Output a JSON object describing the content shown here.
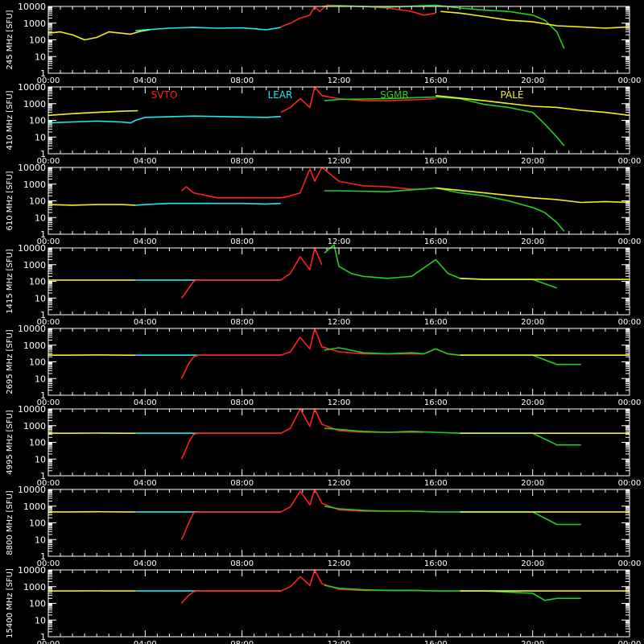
{
  "figure": {
    "background": "#000000",
    "frame_color": "#ffffff",
    "y_ticks": [
      "10000",
      "1000",
      "100",
      "10",
      "1"
    ],
    "x_ticks": [
      "00:00",
      "04:00",
      "08:00",
      "12:00",
      "16:00",
      "20:00",
      "00:00"
    ],
    "station_labels": [
      {
        "name": "SVTO",
        "color": "#ff2020"
      },
      {
        "name": "LEAR",
        "color": "#22e5f0"
      },
      {
        "name": "SGMR",
        "color": "#22d022"
      },
      {
        "name": "PALE",
        "color": "#f0f020"
      }
    ],
    "colors": {
      "SVTO": "#ff2020",
      "LEAR": "#22e5f0",
      "SGMR": "#22d022",
      "PALE": "#f0f020"
    }
  },
  "chart_data": [
    {
      "type": "line",
      "ylabel": "245 MHz [SFU]",
      "xlim": [
        0,
        24
      ],
      "ylim": [
        1,
        10000
      ],
      "yscale": "log",
      "series": [
        {
          "name": "PALE",
          "x": [
            0,
            0.5,
            1,
            1.5,
            2,
            2.5,
            3,
            3.4,
            3.8,
            4.2
          ],
          "y": [
            250,
            300,
            200,
            100,
            140,
            300,
            250,
            220,
            320,
            400
          ]
        },
        {
          "name": "LEAR",
          "x": [
            3.6,
            4,
            5,
            6,
            7,
            8,
            8.6,
            9,
            9.6
          ],
          "y": [
            350,
            400,
            500,
            550,
            500,
            520,
            450,
            400,
            550
          ]
        },
        {
          "name": "SVTO",
          "x": [
            9.6,
            10,
            10.4,
            10.8,
            11,
            11.2,
            11.5,
            13,
            14,
            15,
            15.5,
            16
          ],
          "y": [
            600,
            1000,
            2000,
            3000,
            10000,
            5000,
            12000,
            10000,
            8000,
            5000,
            3000,
            4000
          ]
        },
        {
          "name": "SGMR",
          "x": [
            11.3,
            12,
            14,
            16,
            17,
            18,
            19,
            20,
            20.5,
            21,
            21.3
          ],
          "y": [
            10000,
            11000,
            9000,
            12000,
            8000,
            6000,
            5000,
            3000,
            1500,
            300,
            30
          ]
        },
        {
          "name": "PALE",
          "x": [
            16.2,
            17,
            18,
            19,
            20,
            21,
            22,
            23,
            24
          ],
          "y": [
            5000,
            4000,
            2500,
            1500,
            1200,
            700,
            600,
            500,
            600
          ]
        }
      ]
    },
    {
      "type": "line",
      "ylabel": "410 MHz [SFU]",
      "xlim": [
        0,
        24
      ],
      "ylim": [
        1,
        10000
      ],
      "yscale": "log",
      "series": [
        {
          "name": "LEAR",
          "x": [
            0,
            1,
            2,
            3,
            3.4,
            3.6,
            4,
            6,
            8,
            9,
            9.6
          ],
          "y": [
            70,
            80,
            90,
            80,
            70,
            100,
            150,
            180,
            160,
            150,
            170
          ]
        },
        {
          "name": "PALE",
          "x": [
            0,
            1,
            2,
            3,
            3.7
          ],
          "y": [
            200,
            250,
            300,
            350,
            380
          ]
        },
        {
          "name": "SVTO",
          "x": [
            9.6,
            10,
            10.4,
            10.8,
            11,
            11.3,
            12,
            13,
            14,
            15,
            15.5,
            16
          ],
          "y": [
            300,
            600,
            2000,
            600,
            10000,
            3000,
            2000,
            1500,
            1500,
            1700,
            1800,
            2000
          ]
        },
        {
          "name": "SGMR",
          "x": [
            11.4,
            12,
            14,
            16,
            17,
            18,
            19,
            20,
            20.5,
            21,
            21.3
          ],
          "y": [
            1500,
            1800,
            2000,
            2500,
            2000,
            900,
            600,
            300,
            60,
            10,
            3
          ]
        },
        {
          "name": "PALE",
          "x": [
            16,
            18,
            20,
            21,
            22,
            23,
            24
          ],
          "y": [
            3000,
            1500,
            700,
            600,
            400,
            300,
            200
          ]
        }
      ]
    },
    {
      "type": "line",
      "ylabel": "610 MHz [SFU]",
      "xlim": [
        0,
        24
      ],
      "ylim": [
        1,
        10000
      ],
      "yscale": "log",
      "series": [
        {
          "name": "PALE",
          "x": [
            0,
            1,
            2,
            3,
            3.6
          ],
          "y": [
            60,
            55,
            60,
            60,
            55
          ]
        },
        {
          "name": "LEAR",
          "x": [
            3.6,
            4,
            5,
            6,
            8,
            9,
            9.6
          ],
          "y": [
            55,
            60,
            70,
            70,
            70,
            65,
            70
          ]
        },
        {
          "name": "SVTO",
          "x": [
            5.5,
            5.7,
            6,
            7,
            8,
            9,
            9.6,
            10,
            10.4,
            10.8,
            11,
            11.3,
            12,
            13,
            14,
            15,
            15.5,
            16
          ],
          "y": [
            400,
            700,
            300,
            150,
            150,
            150,
            150,
            200,
            300,
            8000,
            1500,
            10000,
            1500,
            800,
            700,
            500,
            500,
            600
          ]
        },
        {
          "name": "SGMR",
          "x": [
            11.4,
            12,
            14,
            16,
            17,
            18,
            19,
            20,
            20.5,
            21,
            21.3
          ],
          "y": [
            400,
            400,
            350,
            600,
            300,
            200,
            100,
            40,
            20,
            5,
            1.5
          ]
        },
        {
          "name": "PALE",
          "x": [
            16,
            18,
            20,
            21,
            22,
            23,
            24
          ],
          "y": [
            600,
            300,
            150,
            120,
            80,
            90,
            80
          ]
        }
      ]
    },
    {
      "type": "line",
      "ylabel": "1415 MHz [SFU]",
      "xlim": [
        0,
        24
      ],
      "ylim": [
        1,
        10000
      ],
      "yscale": "log",
      "series": [
        {
          "name": "PALE",
          "x": [
            0,
            1,
            2,
            3,
            3.6
          ],
          "y": [
            120,
            120,
            120,
            120,
            120
          ]
        },
        {
          "name": "LEAR",
          "x": [
            3.6,
            4,
            5,
            6,
            8,
            9,
            9.6
          ],
          "y": [
            120,
            120,
            120,
            120,
            120,
            120,
            120
          ]
        },
        {
          "name": "SVTO",
          "x": [
            5.5,
            5.6,
            5.8,
            6,
            6.1,
            6.5,
            9.6,
            10,
            10.4,
            10.8,
            11,
            11.3
          ],
          "y": [
            10,
            15,
            40,
            100,
            120,
            120,
            120,
            300,
            3000,
            500,
            10000,
            1000
          ]
        },
        {
          "name": "SGMR",
          "x": [
            11.4,
            11.8,
            12,
            12.5,
            13,
            14,
            15,
            16,
            16.5,
            17,
            18,
            20,
            21
          ],
          "y": [
            5000,
            15000,
            800,
            300,
            200,
            150,
            200,
            2000,
            300,
            150,
            130,
            130,
            40
          ]
        },
        {
          "name": "PALE",
          "x": [
            17,
            18,
            20,
            22,
            23,
            24
          ],
          "y": [
            150,
            130,
            130,
            130,
            130,
            130
          ]
        }
      ]
    },
    {
      "type": "line",
      "ylabel": "2695 MHz [SFU]",
      "xlim": [
        0,
        24
      ],
      "ylim": [
        1,
        10000
      ],
      "yscale": "log",
      "series": [
        {
          "name": "PALE",
          "x": [
            0,
            1,
            2,
            3,
            3.6
          ],
          "y": [
            250,
            250,
            260,
            250,
            250
          ]
        },
        {
          "name": "LEAR",
          "x": [
            3.6,
            4,
            5,
            6,
            8,
            9,
            9.6
          ],
          "y": [
            250,
            250,
            250,
            250,
            250,
            250,
            250
          ]
        },
        {
          "name": "SVTO",
          "x": [
            5.5,
            5.6,
            5.8,
            6,
            6.2,
            9.6,
            10,
            10.4,
            10.8,
            11,
            11.3,
            12,
            13,
            14,
            15,
            15.5
          ],
          "y": [
            10,
            20,
            80,
            200,
            250,
            250,
            400,
            3000,
            600,
            10000,
            800,
            400,
            300,
            300,
            300,
            300
          ]
        },
        {
          "name": "SGMR",
          "x": [
            11.4,
            12,
            13,
            14,
            15,
            15.5,
            16,
            16.5,
            17,
            18,
            20,
            21,
            22
          ],
          "y": [
            500,
            700,
            350,
            300,
            350,
            300,
            600,
            300,
            250,
            250,
            250,
            70,
            70
          ]
        },
        {
          "name": "PALE",
          "x": [
            17,
            18,
            20,
            22,
            23,
            24
          ],
          "y": [
            250,
            250,
            250,
            250,
            250,
            250
          ]
        }
      ]
    },
    {
      "type": "line",
      "ylabel": "4995 MHz [SFU]",
      "xlim": [
        0,
        24
      ],
      "ylim": [
        1,
        10000
      ],
      "yscale": "log",
      "series": [
        {
          "name": "PALE",
          "x": [
            0,
            1,
            2,
            3,
            3.6
          ],
          "y": [
            350,
            350,
            360,
            350,
            350
          ]
        },
        {
          "name": "LEAR",
          "x": [
            3.6,
            4,
            5,
            6,
            8,
            9,
            9.6
          ],
          "y": [
            350,
            350,
            350,
            350,
            350,
            350,
            350
          ]
        },
        {
          "name": "SVTO",
          "x": [
            5.5,
            5.6,
            5.8,
            6,
            6.2,
            9.6,
            10,
            10.4,
            10.8,
            11,
            11.3,
            12,
            13,
            14,
            15,
            15.5
          ],
          "y": [
            10,
            20,
            100,
            300,
            350,
            350,
            700,
            10000,
            900,
            10000,
            1200,
            500,
            400,
            400,
            400,
            400
          ]
        },
        {
          "name": "SGMR",
          "x": [
            11.4,
            12,
            13,
            14,
            15,
            16,
            17,
            18,
            20,
            21,
            22
          ],
          "y": [
            700,
            600,
            450,
            400,
            450,
            400,
            350,
            350,
            350,
            70,
            70
          ]
        },
        {
          "name": "PALE",
          "x": [
            17,
            18,
            20,
            22,
            23,
            24
          ],
          "y": [
            350,
            350,
            350,
            350,
            350,
            350
          ]
        }
      ]
    },
    {
      "type": "line",
      "ylabel": "8800 MHz [SFU]",
      "xlim": [
        0,
        24
      ],
      "ylim": [
        1,
        10000
      ],
      "yscale": "log",
      "series": [
        {
          "name": "PALE",
          "x": [
            0,
            1,
            2,
            3,
            3.6
          ],
          "y": [
            450,
            450,
            460,
            450,
            450
          ]
        },
        {
          "name": "LEAR",
          "x": [
            3.6,
            4,
            5,
            6,
            8,
            9,
            9.6
          ],
          "y": [
            450,
            450,
            450,
            450,
            450,
            450,
            450
          ]
        },
        {
          "name": "SVTO",
          "x": [
            5.5,
            5.6,
            5.8,
            6,
            6.2,
            9.6,
            10,
            10.4,
            10.8,
            11,
            11.3,
            12,
            13,
            14,
            15,
            15.5
          ],
          "y": [
            10,
            20,
            100,
            400,
            450,
            450,
            900,
            8000,
            1200,
            10000,
            1500,
            600,
            500,
            500,
            500,
            500
          ]
        },
        {
          "name": "SGMR",
          "x": [
            11.4,
            12,
            13,
            14,
            15,
            16,
            17,
            18,
            20,
            21,
            22
          ],
          "y": [
            1000,
            700,
            550,
            500,
            500,
            450,
            450,
            450,
            450,
            80,
            80
          ]
        },
        {
          "name": "PALE",
          "x": [
            17,
            18,
            20,
            22,
            23,
            24
          ],
          "y": [
            450,
            450,
            450,
            450,
            450,
            450
          ]
        }
      ]
    },
    {
      "type": "line",
      "ylabel": "15400 MHz [SFU]",
      "xlim": [
        0,
        24
      ],
      "ylim": [
        1,
        10000
      ],
      "yscale": "log",
      "series": [
        {
          "name": "PALE",
          "x": [
            0,
            1,
            2,
            3,
            3.6
          ],
          "y": [
            550,
            550,
            560,
            550,
            550
          ]
        },
        {
          "name": "LEAR",
          "x": [
            3.6,
            4,
            5,
            6,
            8,
            9,
            9.6
          ],
          "y": [
            550,
            550,
            550,
            550,
            550,
            550,
            550
          ]
        },
        {
          "name": "SVTO",
          "x": [
            5.5,
            5.6,
            5.8,
            6,
            6.2,
            9.6,
            10,
            10.4,
            10.8,
            11,
            11.3,
            12,
            13,
            14,
            15,
            15.5
          ],
          "y": [
            100,
            150,
            300,
            500,
            550,
            550,
            1000,
            4000,
            1200,
            10000,
            1500,
            700,
            600,
            600,
            600,
            600
          ]
        },
        {
          "name": "SGMR",
          "x": [
            11.4,
            12,
            13,
            14,
            15,
            16,
            17,
            18,
            20,
            20.5,
            21,
            22
          ],
          "y": [
            1200,
            800,
            650,
            600,
            600,
            550,
            550,
            550,
            400,
            150,
            200,
            200
          ]
        },
        {
          "name": "PALE",
          "x": [
            17,
            18,
            20,
            22,
            23,
            24
          ],
          "y": [
            550,
            550,
            550,
            550,
            550,
            550
          ]
        }
      ]
    }
  ]
}
